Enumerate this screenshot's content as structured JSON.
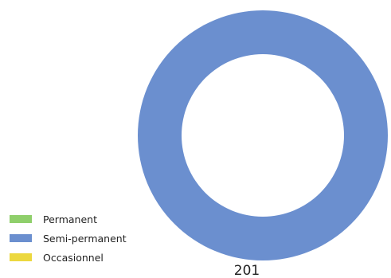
{
  "chart_data": {
    "type": "pie",
    "variant": "donut",
    "categories": [
      "Permanent",
      "Semi-permanent",
      "Occasionnel"
    ],
    "values": [
      0,
      201,
      0
    ],
    "colors": [
      "#8fcf6b",
      "#6b8fcf",
      "#ecd83f"
    ],
    "total_label": "201",
    "legend_position": "bottom-left"
  }
}
